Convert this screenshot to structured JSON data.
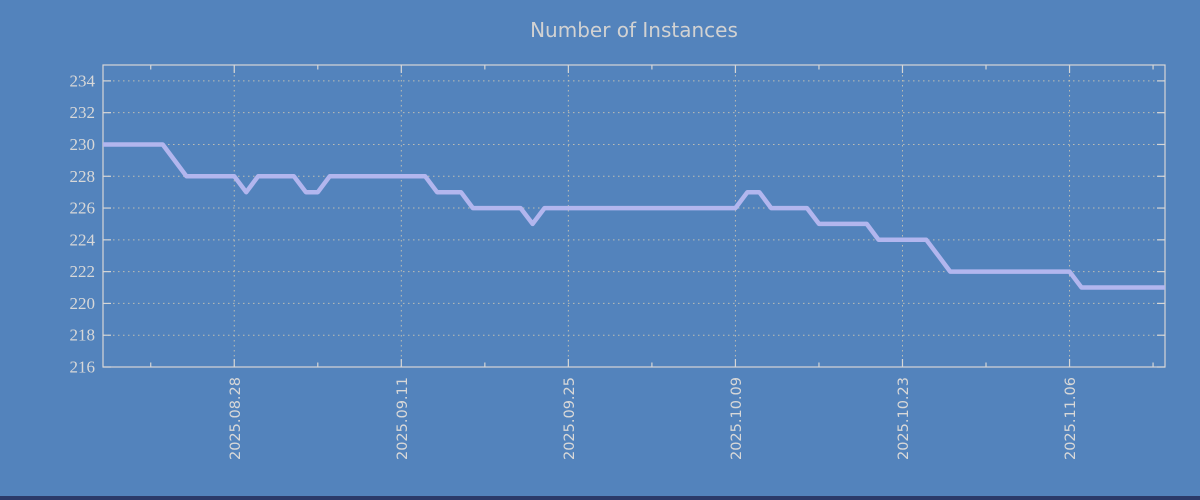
{
  "page": {
    "background_color": "#5383bc",
    "bottom_edge_color": "#2b3a69"
  },
  "chart_data": {
    "type": "line",
    "title": "Number of Instances",
    "xlabel": "",
    "ylabel": "",
    "legend": "none",
    "grid": true,
    "ylim": [
      216,
      235
    ],
    "y_ticks": [
      216,
      218,
      220,
      222,
      224,
      226,
      228,
      230,
      232,
      234
    ],
    "x_major_ticks": [
      {
        "index": 11,
        "label": "2025.08.28"
      },
      {
        "index": 25,
        "label": "2025.09.11"
      },
      {
        "index": 39,
        "label": "2025.09.25"
      },
      {
        "index": 53,
        "label": "2025.10.09"
      },
      {
        "index": 67,
        "label": "2025.10.23"
      },
      {
        "index": 81,
        "label": "2025.11.06"
      }
    ],
    "x_minor_tick_indices": [
      4,
      18,
      32,
      46,
      60,
      74,
      88
    ],
    "x": [
      "2025.08.17",
      "2025.08.18",
      "2025.08.19",
      "2025.08.20",
      "2025.08.21",
      "2025.08.22",
      "2025.08.23",
      "2025.08.24",
      "2025.08.25",
      "2025.08.26",
      "2025.08.27",
      "2025.08.28",
      "2025.08.29",
      "2025.08.30",
      "2025.08.31",
      "2025.09.01",
      "2025.09.02",
      "2025.09.03",
      "2025.09.04",
      "2025.09.05",
      "2025.09.06",
      "2025.09.07",
      "2025.09.08",
      "2025.09.09",
      "2025.09.10",
      "2025.09.11",
      "2025.09.12",
      "2025.09.13",
      "2025.09.14",
      "2025.09.15",
      "2025.09.16",
      "2025.09.17",
      "2025.09.18",
      "2025.09.19",
      "2025.09.20",
      "2025.09.21",
      "2025.09.22",
      "2025.09.23",
      "2025.09.24",
      "2025.09.25",
      "2025.09.26",
      "2025.09.27",
      "2025.09.28",
      "2025.09.29",
      "2025.09.30",
      "2025.10.01",
      "2025.10.02",
      "2025.10.03",
      "2025.10.04",
      "2025.10.05",
      "2025.10.06",
      "2025.10.07",
      "2025.10.08",
      "2025.10.09",
      "2025.10.10",
      "2025.10.11",
      "2025.10.12",
      "2025.10.13",
      "2025.10.14",
      "2025.10.15",
      "2025.10.16",
      "2025.10.17",
      "2025.10.18",
      "2025.10.19",
      "2025.10.20",
      "2025.10.21",
      "2025.10.22",
      "2025.10.23",
      "2025.10.24",
      "2025.10.25",
      "2025.10.26",
      "2025.10.27",
      "2025.10.28",
      "2025.10.29",
      "2025.10.30",
      "2025.10.31",
      "2025.11.01",
      "2025.11.02",
      "2025.11.03",
      "2025.11.04",
      "2025.11.05",
      "2025.11.06",
      "2025.11.07",
      "2025.11.08",
      "2025.11.09",
      "2025.11.10",
      "2025.11.11",
      "2025.11.12",
      "2025.11.13",
      "2025.11.14"
    ],
    "values": [
      230,
      230,
      230,
      230,
      230,
      230,
      229,
      228,
      228,
      228,
      228,
      228,
      227,
      228,
      228,
      228,
      228,
      227,
      227,
      228,
      228,
      228,
      228,
      228,
      228,
      228,
      228,
      228,
      227,
      227,
      227,
      226,
      226,
      226,
      226,
      226,
      225,
      226,
      226,
      226,
      226,
      226,
      226,
      226,
      226,
      226,
      226,
      226,
      226,
      226,
      226,
      226,
      226,
      226,
      227,
      227,
      226,
      226,
      226,
      226,
      225,
      225,
      225,
      225,
      225,
      224,
      224,
      224,
      224,
      224,
      223,
      222,
      222,
      222,
      222,
      222,
      222,
      222,
      222,
      222,
      222,
      222,
      221,
      221,
      221,
      221,
      221,
      221,
      221,
      221
    ],
    "colors": {
      "line": "#b2b6ee",
      "grid": "#c8c4b4",
      "frame": "#d6d6d6",
      "tick_text": "#d8d8d8",
      "title_text": "#d2d2d2",
      "background": "#5383bc"
    }
  }
}
